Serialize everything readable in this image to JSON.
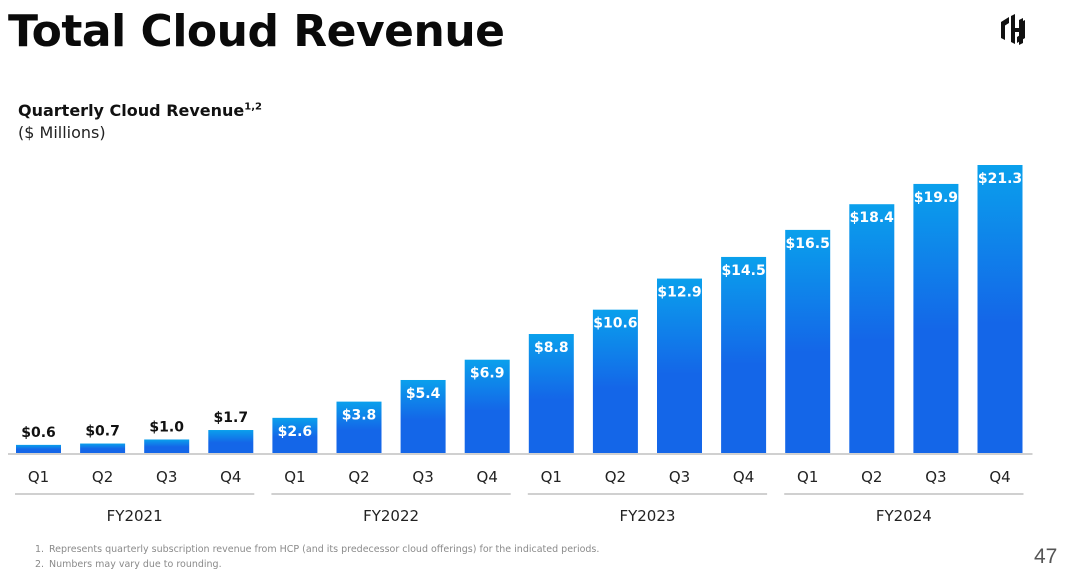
{
  "page": {
    "title": "Total Cloud Revenue",
    "subtitle": "Quarterly Cloud Revenue",
    "subtitle_superscript": "1,2",
    "units": "($ Millions)",
    "logo_icon": "hashicorp-logo-icon",
    "page_number": "47",
    "footnotes": [
      {
        "num": "1.",
        "text": "Represents quarterly subscription revenue from HCP (and its predecessor cloud offerings) for the indicated periods."
      },
      {
        "num": "2.",
        "text": "Numbers may vary due to rounding."
      }
    ]
  },
  "chart_data": {
    "type": "bar",
    "title": "Quarterly Cloud Revenue",
    "ylabel": "$ Millions",
    "xlabel": "",
    "ylim": [
      0,
      21.3
    ],
    "grid": false,
    "legend": "none",
    "categories": [
      "Q1",
      "Q2",
      "Q3",
      "Q4",
      "Q1",
      "Q2",
      "Q3",
      "Q4",
      "Q1",
      "Q2",
      "Q3",
      "Q4",
      "Q1",
      "Q2",
      "Q3",
      "Q4"
    ],
    "groups": [
      {
        "label": "FY2021",
        "count": 4
      },
      {
        "label": "FY2022",
        "count": 4
      },
      {
        "label": "FY2023",
        "count": 4
      },
      {
        "label": "FY2024",
        "count": 4
      }
    ],
    "values": [
      0.6,
      0.7,
      1.0,
      1.7,
      2.6,
      3.8,
      5.4,
      6.9,
      8.8,
      10.6,
      12.9,
      14.5,
      16.5,
      18.4,
      19.9,
      21.3
    ],
    "data_labels": [
      "$0.6",
      "$0.7",
      "$1.0",
      "$1.7",
      "$2.6",
      "$3.8",
      "$5.4",
      "$6.9",
      "$8.8",
      "$10.6",
      "$12.9",
      "$14.5",
      "$16.5",
      "$18.4",
      "$19.9",
      "$21.3"
    ],
    "colors": {
      "bar_top": "#0aa0ec",
      "bar_bottom": "#1466e8",
      "label_inside": "#ffffff",
      "label_outside": "#111111",
      "axis": "#b5b5b5"
    }
  }
}
